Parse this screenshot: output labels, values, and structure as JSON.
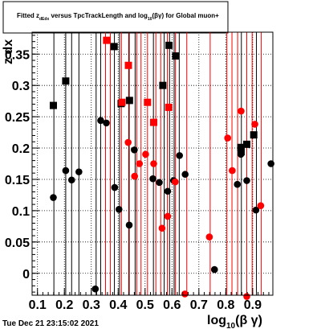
{
  "chart_data": {
    "type": "scatter",
    "title": {
      "part1": "Fitted  z",
      "sub1": "dEdx",
      "part2": "  versus  TpcTrackLength  and log",
      "sub2": "10",
      "part3": "(βγ) for Global muon+"
    },
    "xlabel": {
      "main": "log",
      "sub": "10",
      "rest": "(β γ)"
    },
    "ylabel": "z dx",
    "xlim": [
      0.08,
      0.975
    ],
    "ylim": [
      -0.035,
      0.385
    ],
    "x_ticks": [
      "0.1",
      "0.2",
      "0.3",
      "0.4",
      "0.5",
      "0.6",
      "0.7",
      "0.8",
      "0.9"
    ],
    "y_ticks": [
      "0",
      "0.05",
      "0.1",
      "0.15",
      "0.2",
      "0.25",
      "0.3",
      "0.35"
    ],
    "grid": true,
    "date_stamp": "Tue Dec 21 23:15:02 2021",
    "colors": {
      "black": "#000000",
      "red": "#ff0000"
    },
    "vertical_lines": [
      {
        "x": 0.161,
        "color": "#000000"
      },
      {
        "x": 0.205,
        "color": "#000000"
      },
      {
        "x": 0.227,
        "color": "#000000"
      },
      {
        "x": 0.254,
        "color": "#000000"
      },
      {
        "x": 0.318,
        "color": "#000000"
      },
      {
        "x": 0.335,
        "color": "#000000"
      },
      {
        "x": 0.353,
        "color": "#ff0000"
      },
      {
        "x": 0.371,
        "color": "#ff0000"
      },
      {
        "x": 0.386,
        "color": "#000000"
      },
      {
        "x": 0.405,
        "color": "#000000"
      },
      {
        "x": 0.412,
        "color": "#ff0000"
      },
      {
        "x": 0.439,
        "color": "#ff0000"
      },
      {
        "x": 0.441,
        "color": "#000000"
      },
      {
        "x": 0.463,
        "color": "#000000"
      },
      {
        "x": 0.469,
        "color": "#ff0000"
      },
      {
        "x": 0.485,
        "color": "#ff0000"
      },
      {
        "x": 0.509,
        "color": "#ff0000"
      },
      {
        "x": 0.531,
        "color": "#000000"
      },
      {
        "x": 0.54,
        "color": "#ff0000"
      },
      {
        "x": 0.558,
        "color": "#ff0000"
      },
      {
        "x": 0.571,
        "color": "#000000"
      },
      {
        "x": 0.583,
        "color": "#ff0000"
      },
      {
        "x": 0.591,
        "color": "#000000"
      },
      {
        "x": 0.608,
        "color": "#000000"
      },
      {
        "x": 0.613,
        "color": "#ff0000"
      },
      {
        "x": 0.627,
        "color": "#000000"
      },
      {
        "x": 0.655,
        "color": "#ff0000"
      },
      {
        "x": 0.742,
        "color": "#ff0000"
      },
      {
        "x": 0.804,
        "color": "#ff0000"
      },
      {
        "x": 0.823,
        "color": "#ff0000"
      },
      {
        "x": 0.844,
        "color": "#ff0000"
      },
      {
        "x": 0.858,
        "color": "#000000"
      },
      {
        "x": 0.878,
        "color": "#ff0000"
      },
      {
        "x": 0.898,
        "color": "#ff0000"
      },
      {
        "x": 0.914,
        "color": "#000000"
      },
      {
        "x": 0.932,
        "color": "#ff0000"
      }
    ],
    "series": [
      {
        "marker": "square",
        "color": "#000000",
        "points": [
          [
            0.159,
            0.268
          ],
          [
            0.205,
            0.307
          ],
          [
            0.385,
            0.362
          ],
          [
            0.411,
            0.271
          ],
          [
            0.442,
            0.276
          ],
          [
            0.566,
            0.3
          ],
          [
            0.589,
            0.364
          ],
          [
            0.614,
            0.347
          ],
          [
            0.856,
            0.201
          ],
          [
            0.857,
            0.194
          ],
          [
            0.878,
            0.206
          ],
          [
            0.904,
            0.221
          ]
        ]
      },
      {
        "marker": "square",
        "color": "#ff0000",
        "points": [
          [
            0.357,
            0.372
          ],
          [
            0.414,
            0.273
          ],
          [
            0.438,
            0.332
          ],
          [
            0.509,
            0.273
          ],
          [
            0.532,
            0.241
          ],
          [
            0.588,
            0.265
          ]
        ]
      },
      {
        "marker": "circle",
        "color": "#000000",
        "points": [
          [
            0.159,
            0.121
          ],
          [
            0.205,
            0.164
          ],
          [
            0.227,
            0.149
          ],
          [
            0.254,
            0.162
          ],
          [
            0.315,
            -0.025
          ],
          [
            0.335,
            0.244
          ],
          [
            0.356,
            0.24
          ],
          [
            0.387,
            0.137
          ],
          [
            0.403,
            0.102
          ],
          [
            0.441,
            0.077
          ],
          [
            0.46,
            0.197
          ],
          [
            0.529,
            0.151
          ],
          [
            0.553,
            0.145
          ],
          [
            0.584,
            0.131
          ],
          [
            0.606,
            0.148
          ],
          [
            0.628,
            0.188
          ],
          [
            0.649,
            0.158
          ],
          [
            0.758,
            0.006
          ],
          [
            0.843,
            0.142
          ],
          [
            0.856,
            0.19
          ],
          [
            0.878,
            0.148
          ],
          [
            0.912,
            0.101
          ],
          [
            0.968,
            0.175
          ]
        ]
      },
      {
        "marker": "circle",
        "color": "#ff0000",
        "points": [
          [
            0.437,
            0.209
          ],
          [
            0.461,
            0.155
          ],
          [
            0.479,
            0.175
          ],
          [
            0.502,
            0.19
          ],
          [
            0.532,
            0.175
          ],
          [
            0.563,
            0.072
          ],
          [
            0.584,
            0.091
          ],
          [
            0.612,
            0.146
          ],
          [
            0.648,
            -0.033
          ],
          [
            0.739,
            0.058
          ],
          [
            0.807,
            0.216
          ],
          [
            0.824,
            0.164
          ],
          [
            0.857,
            0.259
          ],
          [
            0.878,
            -0.037
          ],
          [
            0.908,
            0.238
          ],
          [
            0.93,
            0.108
          ]
        ]
      }
    ]
  }
}
